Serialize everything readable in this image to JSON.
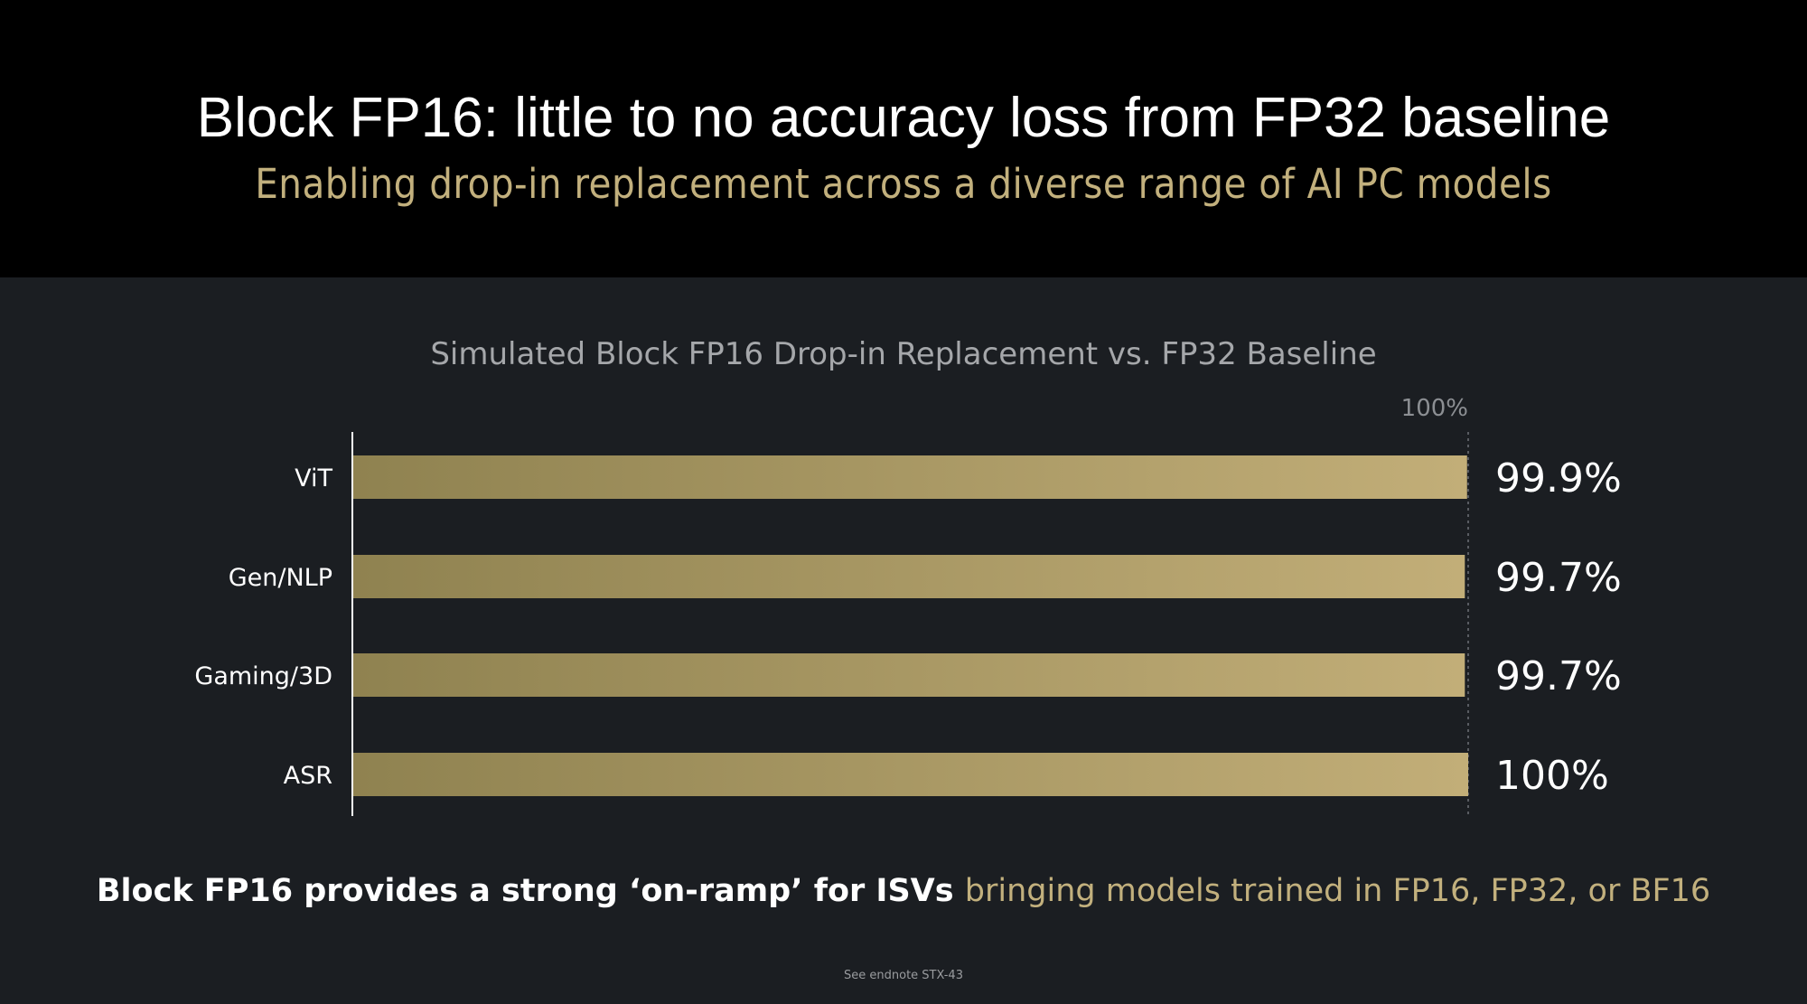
{
  "header": {
    "title": "Block FP16: little to no accuracy loss from FP32 baseline",
    "subtitle": "Enabling drop-in replacement across a diverse range of AI PC models"
  },
  "chart_data": {
    "type": "bar",
    "orientation": "horizontal",
    "title": "Simulated Block FP16 Drop-in Replacement vs. FP32 Baseline",
    "categories": [
      "ViT",
      "Gen/NLP",
      "Gaming/3D",
      "ASR"
    ],
    "values": [
      99.9,
      99.7,
      99.7,
      100
    ],
    "value_labels": [
      "99.9%",
      "99.7%",
      "99.7%",
      "100%"
    ],
    "reference_line": {
      "value": 100,
      "label": "100%"
    },
    "xlabel": "",
    "ylabel": "",
    "grid": false,
    "legend": "none",
    "colors": {
      "bar_start": "#8f8250",
      "bar_end": "#c2ae78",
      "reference": "#6e7177"
    }
  },
  "footer": {
    "bold_text": "Block FP16 provides a strong ‘on-ramp’ for ISVs ",
    "accent_text": "bringing models trained in FP16, FP32, or BF16",
    "endnote": "See endnote STX-43"
  },
  "colors": {
    "header_bg": "#000000",
    "body_bg": "#1b1e22",
    "accent": "#c2b07d",
    "title_text": "#ffffff"
  }
}
